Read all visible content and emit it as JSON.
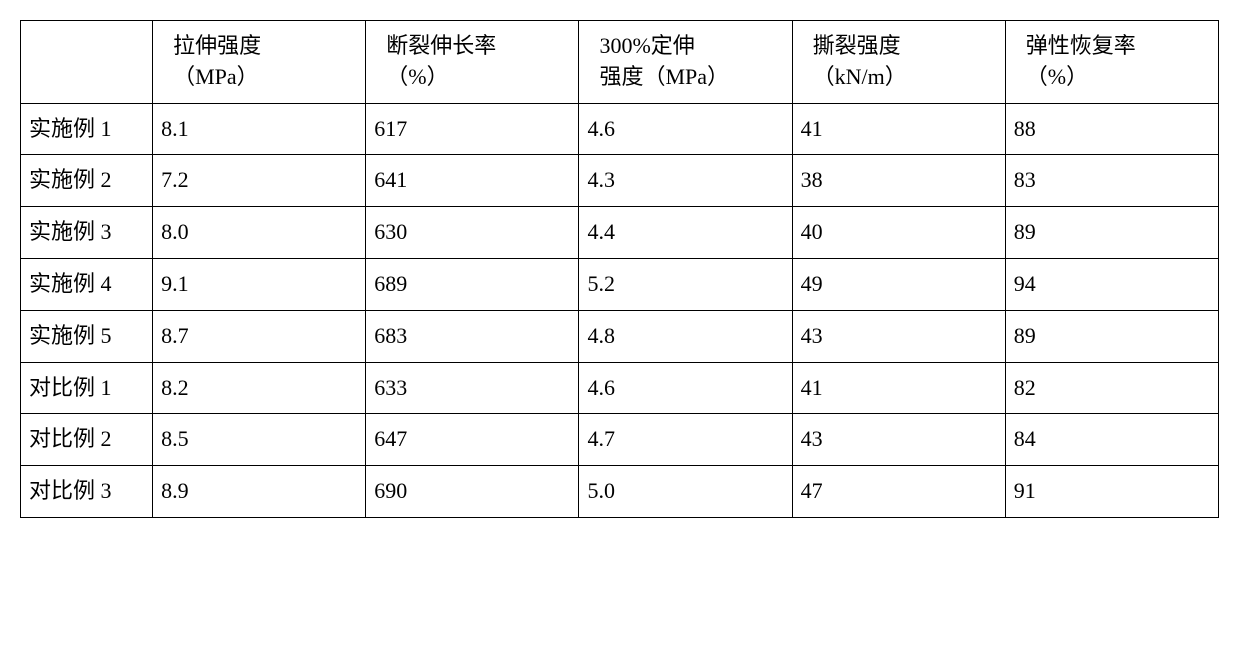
{
  "table": {
    "columns": [
      "",
      "拉伸强度\n（MPa）",
      "断裂伸长率\n（%）",
      "300%定伸\n强度（MPa）",
      "撕裂强度\n（kN/m）",
      "弹性恢复率\n（%）"
    ],
    "header_lines": {
      "col1_line1": "拉伸强度",
      "col1_line2": "（MPa）",
      "col2_line1": "断裂伸长率",
      "col2_line2": "（%）",
      "col3_line1": "300%定伸",
      "col3_line2": "强度（MPa）",
      "col4_line1": "撕裂强度",
      "col4_line2": "（kN/m）",
      "col5_line1": "弹性恢复率",
      "col5_line2": "（%）"
    },
    "rows": [
      {
        "label": "实施例 1",
        "c1": "8.1",
        "c2": "617",
        "c3": "4.6",
        "c4": "41",
        "c5": "88"
      },
      {
        "label": "实施例 2",
        "c1": "7.2",
        "c2": "641",
        "c3": "4.3",
        "c4": "38",
        "c5": "83"
      },
      {
        "label": "实施例 3",
        "c1": "8.0",
        "c2": "630",
        "c3": "4.4",
        "c4": "40",
        "c5": "89"
      },
      {
        "label": "实施例 4",
        "c1": "9.1",
        "c2": "689",
        "c3": "5.2",
        "c4": "49",
        "c5": "94"
      },
      {
        "label": "实施例 5",
        "c1": "8.7",
        "c2": "683",
        "c3": "4.8",
        "c4": "43",
        "c5": "89"
      },
      {
        "label": "对比例 1",
        "c1": "8.2",
        "c2": "633",
        "c3": "4.6",
        "c4": "41",
        "c5": "82"
      },
      {
        "label": "对比例 2",
        "c1": "8.5",
        "c2": "647",
        "c3": "4.7",
        "c4": "43",
        "c5": "84"
      },
      {
        "label": "对比例 3",
        "c1": "8.9",
        "c2": "690",
        "c3": "5.0",
        "c4": "47",
        "c5": "91"
      }
    ],
    "border_color": "#000000",
    "background_color": "#ffffff",
    "text_color": "#000000",
    "font_size": 22,
    "cell_padding": 10
  }
}
